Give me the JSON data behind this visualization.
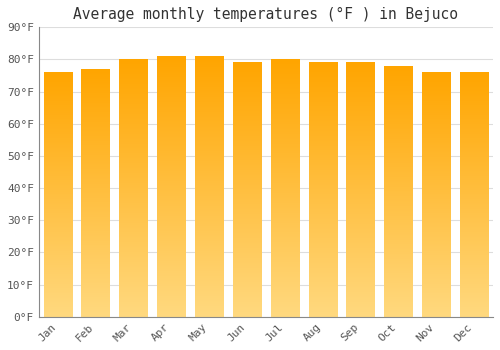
{
  "title": "Average monthly temperatures (°F ) in Bejuco",
  "months": [
    "Jan",
    "Feb",
    "Mar",
    "Apr",
    "May",
    "Jun",
    "Jul",
    "Aug",
    "Sep",
    "Oct",
    "Nov",
    "Dec"
  ],
  "values": [
    76,
    77,
    80,
    81,
    81,
    79,
    80,
    79,
    79,
    78,
    76,
    76
  ],
  "bar_color_top": "#FFA500",
  "bar_color_bottom": "#FFD97F",
  "background_color": "#FFFFFF",
  "plot_bg_color": "#FFFFFF",
  "grid_color": "#DDDDDD",
  "ylim": [
    0,
    90
  ],
  "yticks": [
    0,
    10,
    20,
    30,
    40,
    50,
    60,
    70,
    80,
    90
  ],
  "ytick_labels": [
    "0°F",
    "10°F",
    "20°F",
    "30°F",
    "40°F",
    "50°F",
    "60°F",
    "70°F",
    "80°F",
    "90°F"
  ],
  "title_fontsize": 10.5,
  "tick_fontsize": 8,
  "font_family": "monospace",
  "bar_width": 0.75
}
